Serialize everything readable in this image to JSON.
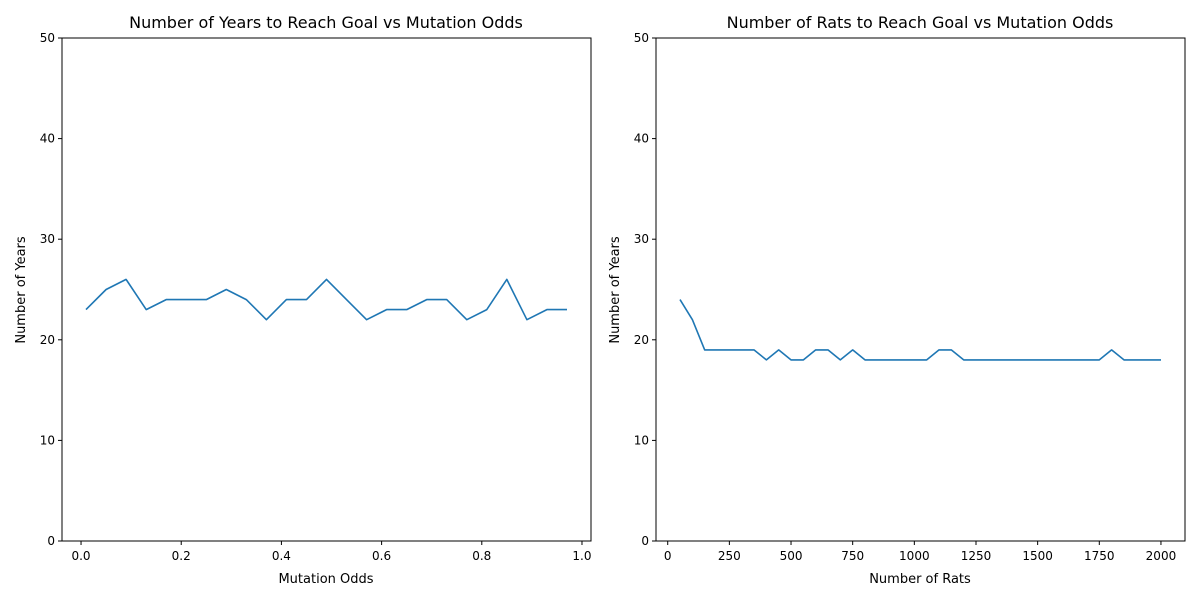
{
  "chart_data": [
    {
      "type": "line",
      "title": "Number of Years to Reach Goal vs Mutation Odds",
      "xlabel": "Mutation Odds",
      "ylabel": "Number of Years",
      "xlim": [
        -0.038,
        1.018
      ],
      "ylim": [
        0,
        50
      ],
      "xticks": [
        0.0,
        0.2,
        0.4,
        0.6,
        0.8,
        1.0
      ],
      "xtick_labels": [
        "0.0",
        "0.2",
        "0.4",
        "0.6",
        "0.8",
        "1.0"
      ],
      "yticks": [
        0,
        10,
        20,
        30,
        40,
        50
      ],
      "ytick_labels": [
        "0",
        "10",
        "20",
        "30",
        "40",
        "50"
      ],
      "grid": false,
      "color": "#1f77b4",
      "series": [
        {
          "x": [
            0.01,
            0.05,
            0.09,
            0.13,
            0.17,
            0.21,
            0.25,
            0.29,
            0.33,
            0.37,
            0.41,
            0.45,
            0.49,
            0.53,
            0.57,
            0.61,
            0.65,
            0.69,
            0.73,
            0.77,
            0.81,
            0.85,
            0.89,
            0.93,
            0.97
          ],
          "y": [
            23,
            25,
            26,
            23,
            24,
            24,
            24,
            25,
            24,
            22,
            24,
            24,
            26,
            24,
            22,
            23,
            23,
            24,
            24,
            22,
            23,
            26,
            22,
            23,
            23
          ]
        }
      ]
    },
    {
      "type": "line",
      "title": "Number of Rats to Reach Goal vs Mutation Odds",
      "xlabel": "Number of Rats",
      "ylabel": "Number of Years",
      "xlim": [
        -47.5,
        2097.5
      ],
      "ylim": [
        0,
        50
      ],
      "xticks": [
        0,
        250,
        500,
        750,
        1000,
        1250,
        1500,
        1750,
        2000
      ],
      "xtick_labels": [
        "0",
        "250",
        "500",
        "750",
        "1000",
        "1250",
        "1500",
        "1750",
        "2000"
      ],
      "yticks": [
        0,
        10,
        20,
        30,
        40,
        50
      ],
      "ytick_labels": [
        "0",
        "10",
        "20",
        "30",
        "40",
        "50"
      ],
      "grid": false,
      "color": "#1f77b4",
      "series": [
        {
          "x": [
            50,
            100,
            150,
            200,
            250,
            300,
            350,
            400,
            450,
            500,
            550,
            600,
            650,
            700,
            750,
            800,
            850,
            900,
            950,
            1000,
            1050,
            1100,
            1150,
            1200,
            1250,
            1300,
            1350,
            1400,
            1450,
            1500,
            1550,
            1600,
            1650,
            1700,
            1750,
            1800,
            1850,
            1900,
            1950,
            2000
          ],
          "y": [
            24,
            22,
            19,
            19,
            19,
            19,
            19,
            18,
            19,
            18,
            18,
            19,
            19,
            18,
            19,
            18,
            18,
            18,
            18,
            18,
            18,
            19,
            19,
            18,
            18,
            18,
            18,
            18,
            18,
            18,
            18,
            18,
            18,
            18,
            18,
            19,
            18,
            18,
            18,
            18
          ]
        }
      ]
    }
  ]
}
